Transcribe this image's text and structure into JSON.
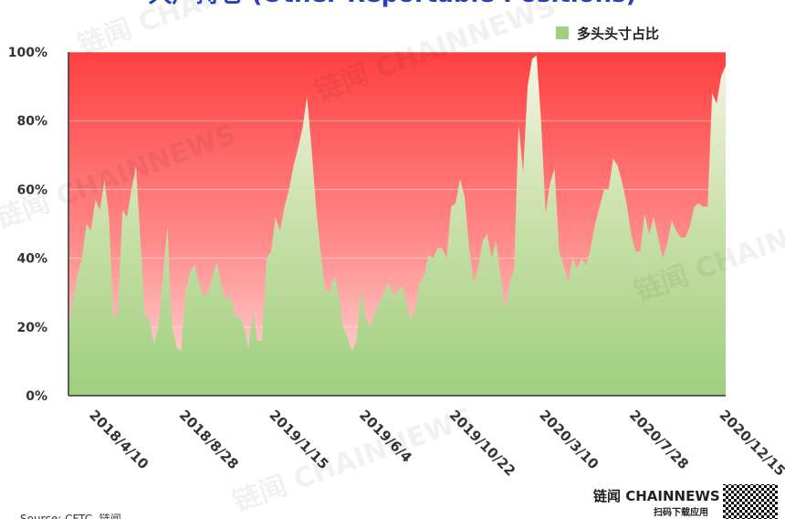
{
  "chart_data": {
    "type": "area",
    "title": "大户持仓 (Other Reportable Positions)",
    "source": "Source: CFTC, 链闻",
    "watermark": "链闻 CHAINNEWS",
    "brand": "链闻 CHAINNEWS",
    "brand_sub": "扫码下载应用",
    "categories": [
      "2018/4/10",
      null,
      null,
      null,
      null,
      null,
      null,
      null,
      null,
      null,
      null,
      null,
      null,
      null,
      null,
      null,
      null,
      null,
      null,
      null,
      "2018/8/28",
      null,
      null,
      null,
      null,
      null,
      null,
      null,
      null,
      null,
      null,
      null,
      null,
      null,
      null,
      null,
      null,
      null,
      null,
      null,
      "2019/1/15",
      null,
      null,
      null,
      null,
      null,
      null,
      null,
      null,
      null,
      null,
      null,
      null,
      null,
      null,
      null,
      null,
      null,
      null,
      null,
      "2019/6/4",
      null,
      null,
      null,
      null,
      null,
      null,
      null,
      null,
      null,
      null,
      null,
      null,
      null,
      null,
      null,
      null,
      null,
      null,
      null,
      "2019/10/22",
      null,
      null,
      null,
      null,
      null,
      null,
      null,
      null,
      null,
      null,
      null,
      null,
      null,
      null,
      null,
      null,
      null,
      null,
      null,
      "2020/3/10",
      null,
      null,
      null,
      null,
      null,
      null,
      null,
      null,
      null,
      null,
      null,
      null,
      null,
      null,
      null,
      null,
      null,
      null,
      null,
      "2020/7/28",
      null,
      null,
      null,
      null,
      null,
      null,
      null,
      null,
      null,
      null,
      null,
      null,
      null,
      null,
      null,
      null,
      null,
      null,
      null,
      "2020/12/15",
      null,
      null,
      null,
      null,
      null,
      null
    ],
    "series": [
      {
        "name": "多头头寸占比",
        "color": "#9fcf7f",
        "values": [
          20,
          28,
          35,
          40,
          50,
          48,
          57,
          54,
          63,
          52,
          22,
          25,
          54,
          52,
          60,
          67,
          45,
          23,
          22,
          15,
          20,
          35,
          49,
          20,
          14,
          13,
          30,
          36,
          38,
          33,
          29,
          30,
          35,
          39,
          32,
          28,
          29,
          23,
          23,
          20,
          14,
          24,
          16,
          16,
          40,
          42,
          52,
          48,
          55,
          60,
          67,
          72,
          78,
          87,
          72,
          55,
          42,
          31,
          30,
          35,
          30,
          20,
          17,
          13,
          16,
          31,
          23,
          20,
          24,
          27,
          30,
          33,
          30,
          30,
          32,
          28,
          22,
          25,
          33,
          35,
          41,
          40,
          43,
          43,
          40,
          55,
          56,
          63,
          58,
          43,
          33,
          37,
          45,
          47,
          40,
          45,
          35,
          25,
          33,
          37,
          79,
          65,
          90,
          98,
          99,
          80,
          53,
          62,
          66,
          42,
          38,
          33,
          40,
          37,
          40,
          38,
          43,
          50,
          55,
          60,
          60,
          69,
          67,
          62,
          56,
          47,
          42,
          42,
          53,
          47,
          52,
          46,
          40,
          44,
          51,
          48,
          46,
          46,
          49,
          55,
          56,
          55,
          55,
          88,
          85,
          93,
          96
        ]
      }
    ],
    "ylim": [
      0,
      100
    ],
    "yticks": [
      {
        "value": 0,
        "label": "0%"
      },
      {
        "value": 20,
        "label": "20%"
      },
      {
        "value": 40,
        "label": "40%"
      },
      {
        "value": 60,
        "label": "60%"
      },
      {
        "value": 80,
        "label": "80%"
      },
      {
        "value": 100,
        "label": "100%"
      }
    ],
    "grid": true,
    "legend": "top-right"
  }
}
